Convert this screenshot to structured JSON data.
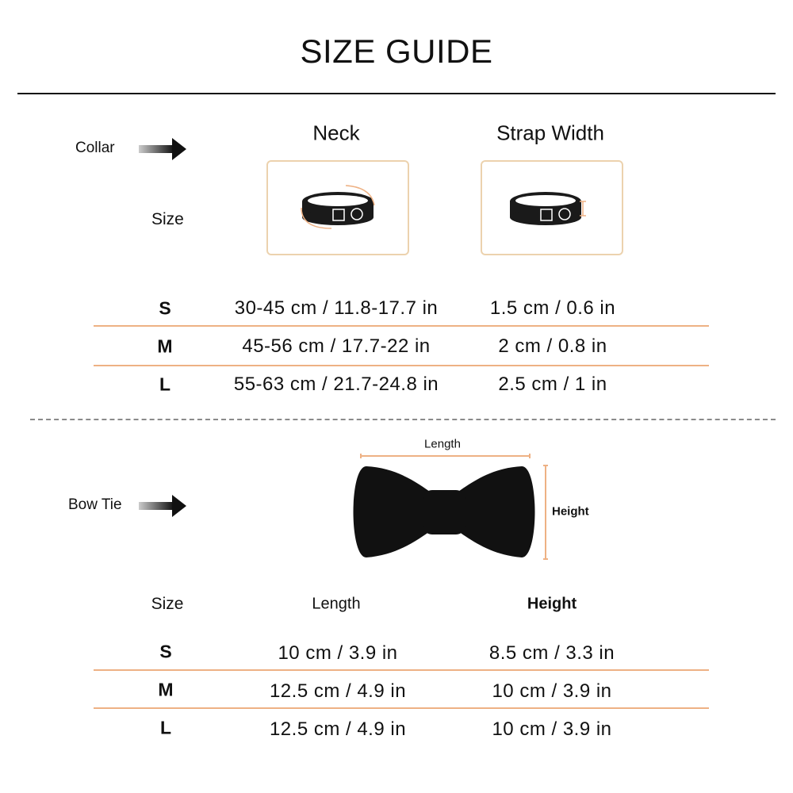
{
  "title": "SIZE GUIDE",
  "colors": {
    "accent": "#eeb184",
    "box_border": "#ecd2ae",
    "divider": "#8a8a8a"
  },
  "collar": {
    "label": "Collar",
    "arrow_icon": "arrow-right-icon",
    "size_label": "Size",
    "headers": [
      "Neck",
      "Strap Width"
    ],
    "rows": [
      {
        "size": "S",
        "neck": "30-45 cm / 11.8-17.7 in",
        "strap": "1.5 cm / 0.6 in"
      },
      {
        "size": "M",
        "neck": "45-56 cm / 17.7-22 in",
        "strap": "2 cm / 0.8 in"
      },
      {
        "size": "L",
        "neck": "55-63 cm / 21.7-24.8 in",
        "strap": "2.5 cm / 1 in"
      }
    ]
  },
  "bowtie": {
    "label": "Bow Tie",
    "arrow_icon": "arrow-right-icon",
    "diagram_length": "Length",
    "diagram_height": "Height",
    "headers": [
      "Size",
      "Length",
      "Height"
    ],
    "rows": [
      {
        "size": "S",
        "length": "10 cm / 3.9 in",
        "height": "8.5 cm / 3.3 in"
      },
      {
        "size": "M",
        "length": "12.5 cm / 4.9 in",
        "height": "10 cm / 3.9 in"
      },
      {
        "size": "L",
        "length": "12.5 cm / 4.9 in",
        "height": "10 cm / 3.9 in"
      }
    ]
  }
}
